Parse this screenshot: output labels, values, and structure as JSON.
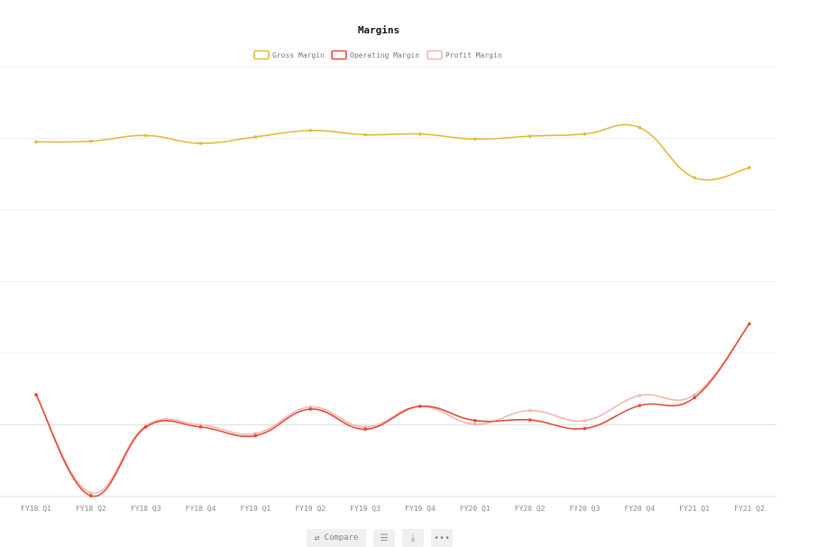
{
  "chart_data": {
    "type": "line",
    "title": "Margins",
    "categories": [
      "FY18 Q1",
      "FY18 Q2",
      "FY18 Q3",
      "FY18 Q4",
      "FY19 Q1",
      "FY19 Q2",
      "FY19 Q3",
      "FY19 Q4",
      "FY20 Q1",
      "FY20 Q2",
      "FY20 Q3",
      "FY20 Q4",
      "FY21 Q1",
      "FY21 Q2"
    ],
    "ylim": [
      0,
      6
    ],
    "grid": true,
    "legend_position": "top-center",
    "series": [
      {
        "name": "Gross Margin",
        "color": "#e2b93b",
        "values": [
          4.95,
          4.96,
          5.04,
          4.93,
          5.02,
          5.11,
          5.05,
          5.06,
          4.99,
          5.03,
          5.06,
          5.15,
          4.45,
          4.59
        ]
      },
      {
        "name": "Operating Margin",
        "color": "#e5483a",
        "values": [
          1.42,
          0.01,
          0.97,
          0.97,
          0.85,
          1.22,
          0.94,
          1.26,
          1.06,
          1.07,
          0.95,
          1.27,
          1.38,
          2.41
        ]
      },
      {
        "name": "Profit Margin",
        "color": "#f2b6ad",
        "values": [
          1.42,
          0.05,
          0.99,
          1.0,
          0.88,
          1.25,
          0.97,
          1.26,
          1.01,
          1.2,
          1.06,
          1.41,
          1.42,
          2.41
        ]
      }
    ]
  },
  "toolbar": {
    "compare_label": "Compare",
    "compare_icon": "compare-icon",
    "list_icon": "list-icon",
    "download_icon": "download-icon",
    "more_icon": "more-icon"
  }
}
